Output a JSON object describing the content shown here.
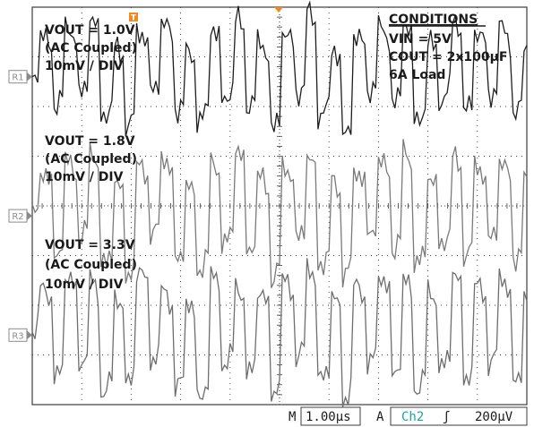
{
  "chart_data": {
    "type": "line",
    "title": "",
    "xlabel": "",
    "ylabel": "",
    "grid": true,
    "x_divisions": 10,
    "y_divisions": 8,
    "time_per_div_us": 1.0,
    "xlim_us": [
      0,
      10
    ],
    "ylim_div": [
      -4,
      4
    ],
    "series": [
      {
        "name": "",
        "ref_marker": "R1",
        "color": "#1e1e1e",
        "volts_per_div_mV": 10,
        "baseline_div": 2.6,
        "label_lines": [
          "VOUT = 1.0V",
          "(AC Coupled)",
          "10mV / DIV"
        ],
        "samples_mV": [
          0,
          8,
          -6,
          10,
          -4,
          12,
          -8,
          6,
          -10,
          9,
          -3,
          11,
          -7,
          5,
          -9,
          10,
          -5,
          12,
          -6,
          7,
          -11,
          9,
          -4,
          13,
          -8,
          6,
          -12,
          8,
          -3,
          10,
          -6,
          11,
          -9,
          7,
          -5,
          12,
          -7,
          9,
          -4,
          10,
          -8,
          6
        ]
      },
      {
        "name": "",
        "ref_marker": "R2",
        "color": "#7a7a7a",
        "volts_per_div_mV": 10,
        "baseline_div": -0.2,
        "label_lines": [
          "VOUT = 1.8V",
          "(AC Coupled)",
          "10mV / DIV"
        ],
        "samples_mV": [
          0,
          9,
          -8,
          11,
          -5,
          13,
          -10,
          7,
          -12,
          10,
          -4,
          12,
          -9,
          6,
          -11,
          11,
          -6,
          14,
          -7,
          8,
          -13,
          10,
          -5,
          12,
          -10,
          7,
          -12,
          9,
          -4,
          11,
          -7,
          13,
          -10,
          8,
          -6,
          12,
          -8,
          10,
          -5,
          11,
          -9,
          7
        ]
      },
      {
        "name": "",
        "ref_marker": "R3",
        "color": "#6e6e6e",
        "volts_per_div_mV": 10,
        "baseline_div": -2.6,
        "label_lines": [
          "VOUT = 3.3V",
          "(AC Coupled)",
          "10mV / DIV"
        ],
        "samples_mV": [
          0,
          10,
          -9,
          12,
          -6,
          11,
          -12,
          8,
          -10,
          13,
          -5,
          9,
          -11,
          7,
          -13,
          12,
          -6,
          10,
          -8,
          9,
          -12,
          11,
          -5,
          14,
          -9,
          8,
          -13,
          10,
          -6,
          12,
          -8,
          11,
          -11,
          9,
          -7,
          13,
          -9,
          10,
          -6,
          12,
          -10,
          8
        ]
      }
    ],
    "conditions": {
      "title": "CONDITIONS",
      "lines": [
        "VIN = 5V",
        "COUT = 2x100µF",
        "6A Load"
      ]
    },
    "trigger_marker": "T",
    "status_bar": {
      "horizontal_prefix": "M",
      "horizontal_value": "1.00µs",
      "trigger_prefix": "A",
      "trigger_channel": "Ch2",
      "trigger_slope": "ʃ",
      "trigger_level": "200µV"
    },
    "colors": {
      "grid": "#3c3c3c",
      "trigger_marker": "#f08a1e",
      "channel_readout": "#1aa3a3"
    }
  }
}
